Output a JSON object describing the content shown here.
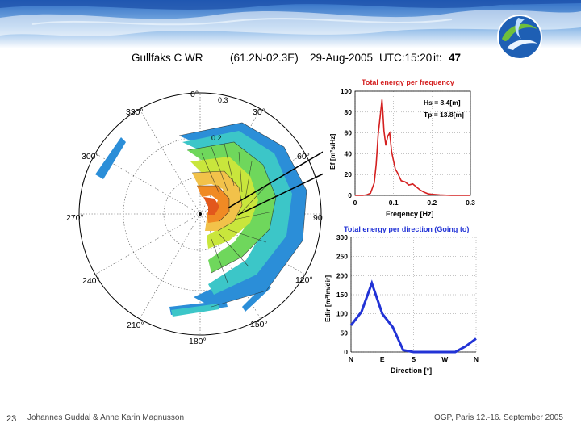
{
  "slide": {
    "number": "23",
    "author": "Johannes Guddal & Anne Karin Magnusson",
    "event": "OGP, Paris 12.-16. September 2005",
    "colors": {
      "banner_dark": "#1b4fa8",
      "banner_light": "#bcd6f2",
      "logo_blue": "#1e5fb4",
      "logo_green": "#6fbf3b"
    }
  },
  "header": {
    "station": "Gullfaks C WR",
    "location": "(61.2N-02.3E)",
    "date": "29-Aug-2005",
    "utc_label": "UTC:15:20",
    "it_label": "it:",
    "it_value": "47"
  },
  "polar": {
    "direction_labels": [
      "0°",
      "30°",
      "60°",
      "90°",
      "120°",
      "150°",
      "180°",
      "210°",
      "240°",
      "270°",
      "300°",
      "330°"
    ],
    "ring_labels": [
      "0.3",
      "0.2"
    ]
  },
  "chart_data": [
    {
      "type": "line",
      "title": "Total energy per frequency",
      "xlabel": "Freqency [Hz]",
      "ylabel": "Ef [m²s/Hz]",
      "xlim": [
        0,
        0.3
      ],
      "ylim": [
        0,
        100
      ],
      "xticks": [
        "0",
        "0.1",
        "0.2",
        "0.3"
      ],
      "yticks": [
        "0",
        "20",
        "40",
        "60",
        "80",
        "100"
      ],
      "annotations": [
        "Hs = 8.4[m]",
        "Tp = 13.8[m]"
      ],
      "color": "#d42020",
      "series": [
        {
          "name": "Ef",
          "x": [
            0.0,
            0.02,
            0.03,
            0.04,
            0.05,
            0.055,
            0.06,
            0.065,
            0.07,
            0.072,
            0.075,
            0.08,
            0.085,
            0.09,
            0.095,
            0.1,
            0.105,
            0.11,
            0.12,
            0.13,
            0.14,
            0.15,
            0.16,
            0.17,
            0.18,
            0.19,
            0.2,
            0.22,
            0.25,
            0.3
          ],
          "y": [
            0,
            0,
            0.5,
            2,
            12,
            30,
            58,
            75,
            92,
            82,
            62,
            48,
            57,
            60,
            42,
            33,
            25,
            22,
            14,
            13,
            10,
            11,
            8,
            5,
            3,
            1.5,
            1,
            0.5,
            0,
            0
          ]
        }
      ]
    },
    {
      "type": "line",
      "title": "Total energy per direction (Going to)",
      "xlabel": "Direction [°]",
      "ylabel": "Edir [m²/m/dir]",
      "ylim": [
        0,
        300
      ],
      "yticks": [
        "0",
        "50",
        "100",
        "150",
        "200",
        "250",
        "300"
      ],
      "categories": [
        "N",
        "E",
        "S",
        "W",
        "N"
      ],
      "color": "#2233d6",
      "series": [
        {
          "name": "Edir",
          "x": [
            0,
            30,
            60,
            90,
            120,
            150,
            180,
            210,
            240,
            270,
            300,
            330,
            360
          ],
          "y": [
            70,
            105,
            180,
            100,
            65,
            5,
            0,
            0,
            0,
            0,
            0,
            15,
            35
          ]
        }
      ]
    }
  ]
}
